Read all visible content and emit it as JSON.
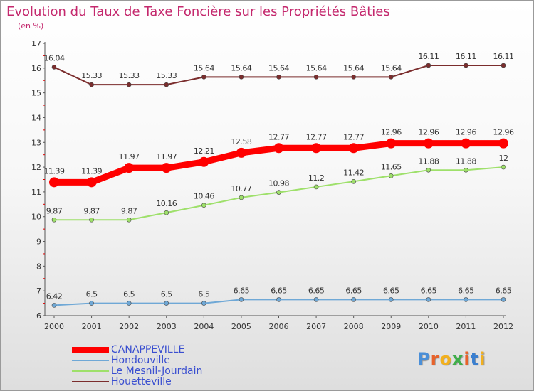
{
  "chart_data": {
    "type": "line",
    "title": "Evolution du Taux de Taxe Foncière sur les Propriétés Bâties",
    "ylabel": "(en %)",
    "x": [
      2000,
      2001,
      2002,
      2003,
      2004,
      2005,
      2006,
      2007,
      2008,
      2009,
      2010,
      2011,
      2012
    ],
    "ylim": [
      6,
      17
    ],
    "yticks": [
      6,
      7,
      8,
      9,
      10,
      11,
      12,
      13,
      14,
      15,
      16,
      17
    ],
    "grid": false,
    "legend_position": "bottom-left",
    "series": [
      {
        "name": "Houetteville",
        "color": "#7b2d2d",
        "values": [
          16.04,
          15.33,
          15.33,
          15.33,
          15.64,
          15.64,
          15.64,
          15.64,
          15.64,
          15.64,
          16.11,
          16.11,
          16.11
        ],
        "labels": [
          "16.04",
          "15.33",
          "15.33",
          "15.33",
          "15.64",
          "15.64",
          "15.64",
          "15.64",
          "15.64",
          "15.64",
          "16.11",
          "16.11",
          "16.11"
        ]
      },
      {
        "name": "CANAPPEVILLE",
        "color": "#ff0000",
        "values": [
          11.39,
          11.39,
          11.97,
          11.97,
          12.21,
          12.58,
          12.77,
          12.77,
          12.77,
          12.96,
          12.96,
          12.96,
          12.96
        ],
        "labels": [
          "11.39",
          "11.39",
          "11.97",
          "11.97",
          "12.21",
          "12.58",
          "12.77",
          "12.77",
          "12.77",
          "12.96",
          "12.96",
          "12.96",
          "12.96"
        ]
      },
      {
        "name": "Le Mesnil-Jourdain",
        "color": "#9ee06a",
        "values": [
          9.87,
          9.87,
          9.87,
          10.16,
          10.46,
          10.77,
          10.98,
          11.2,
          11.42,
          11.65,
          11.88,
          11.88,
          12
        ],
        "labels": [
          "9.87",
          "9.87",
          "9.87",
          "10.16",
          "10.46",
          "10.77",
          "10.98",
          "11.2",
          "11.42",
          "11.65",
          "11.88",
          "11.88",
          "12"
        ]
      },
      {
        "name": "Hondouville",
        "color": "#6fa8d6",
        "values": [
          6.42,
          6.5,
          6.5,
          6.5,
          6.5,
          6.65,
          6.65,
          6.65,
          6.65,
          6.65,
          6.65,
          6.65,
          6.65
        ],
        "labels": [
          "6.42",
          "6.5",
          "6.5",
          "6.5",
          "6.5",
          "6.65",
          "6.65",
          "6.65",
          "6.65",
          "6.65",
          "6.65",
          "6.65",
          "6.65"
        ]
      }
    ],
    "legend": [
      {
        "name": "CANAPPEVILLE",
        "color": "#ff0000",
        "bold": true
      },
      {
        "name": "Hondouville",
        "color": "#6fa8d6",
        "bold": false
      },
      {
        "name": "Le Mesnil-Jourdain",
        "color": "#9ee06a",
        "bold": false
      },
      {
        "name": "Houetteville",
        "color": "#7b2d2d",
        "bold": false
      }
    ]
  },
  "brand": {
    "text": "Proxiti",
    "letter_colors": [
      "#4a8fd8",
      "#e8622a",
      "#f2b01e",
      "#3fae49",
      "#e8622a",
      "#3a7fd0",
      "#f2b01e"
    ]
  }
}
